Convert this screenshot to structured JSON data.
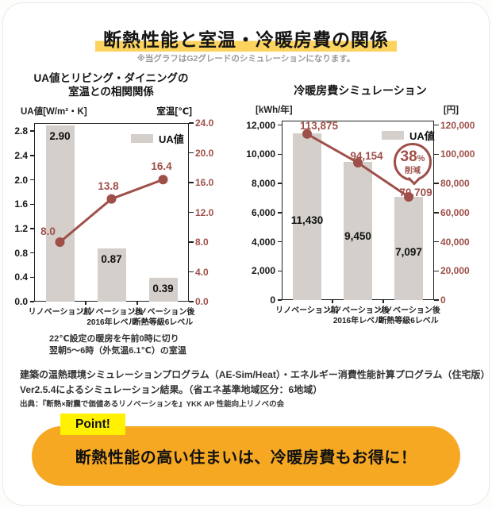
{
  "card": {
    "header": {
      "title": "断熱性能と室温・冷暖房費の関係",
      "subtitle": "※当グラフはG2グレードのシミュレーションになります。"
    },
    "notes_left_chart": [
      "22℃設定の暖房を午前0時に切り",
      "翌朝5～6時（外気温6.1℃）の室温"
    ],
    "footer_lines": [
      "建築の温熱環境シミュレーションプログラム（AE-Sim/Heat）・エネルギー消費性能計算プログラム（住宅版）",
      "Ver2.5.4によるシミュレーション結果。（省エネ基準地域区分：6地域）",
      "出典：『断熱×耐震で価値あるリノベーションを』YKK AP 性能向上リノベの会"
    ],
    "point": {
      "label": "Point!",
      "text": "断熱性能の高い住まいは、冷暖房費もお得に！"
    }
  },
  "chart_data": [
    {
      "type": "bar",
      "title_lines": [
        "UA値とリビング・ダイニングの",
        "室温との相関関係"
      ],
      "legend_label": "UA値",
      "categories": [
        [
          "リノベーション前"
        ],
        [
          "リノベーション後",
          "2016年レベル"
        ],
        [
          "リノベーション後",
          "断熱等級6レベル"
        ]
      ],
      "left_axis": {
        "unit_label": "UA値[W/m²・K]",
        "tick_values": [
          0,
          0.4,
          0.8,
          1.2,
          1.6,
          2.0,
          2.4,
          2.8
        ],
        "tick_labels": [
          "0.0",
          "0.4",
          "0.8",
          "1.2",
          "1.6",
          "2.0",
          "2.4",
          "2.8"
        ],
        "max": 2.933
      },
      "right_axis": {
        "unit_label": "室温[℃]",
        "tick_values": [
          0,
          4,
          8,
          12,
          16,
          20,
          24
        ],
        "tick_labels": [
          "0.0",
          "4.0",
          "8.0",
          "12.0",
          "16.0",
          "20.0",
          "24.0"
        ],
        "max": 24
      },
      "bar_series": {
        "axis": "left",
        "values": [
          2.9,
          0.87,
          0.39
        ],
        "labels": [
          "2.90",
          "0.87",
          "0.39"
        ]
      },
      "line_series": {
        "axis": "right",
        "values": [
          8.0,
          13.8,
          16.4
        ],
        "labels": [
          "8.0",
          "13.8",
          "16.4"
        ]
      }
    },
    {
      "type": "bar",
      "title_lines": [
        "冷暖房費シミュレーション"
      ],
      "legend_label": "UA値",
      "categories": [
        [
          "リノベーション前"
        ],
        [
          "リノベーション後",
          "2016年レベル"
        ],
        [
          "リノベーション後",
          "断熱等級6レベル"
        ]
      ],
      "left_axis": {
        "unit_label": "[kWh/年]",
        "tick_values": [
          0,
          2000,
          4000,
          6000,
          8000,
          10000,
          12000
        ],
        "tick_labels": [
          "0",
          "2,000",
          "4,000",
          "6,000",
          "8,000",
          "10,000",
          "12,000"
        ],
        "max": 12300
      },
      "right_axis": {
        "unit_label": "[円]",
        "tick_values": [
          0,
          20000,
          40000,
          60000,
          80000,
          100000,
          120000
        ],
        "tick_labels": [
          "0",
          "20,000",
          "40,000",
          "60,000",
          "80,000",
          "100,000",
          "120,000"
        ],
        "max": 123000
      },
      "bar_series": {
        "axis": "left",
        "values": [
          11430,
          9450,
          7097
        ],
        "labels": [
          "11,430",
          "9,450",
          "7,097"
        ]
      },
      "line_series": {
        "axis": "right",
        "values": [
          113875,
          94154,
          70709
        ],
        "labels": [
          "113,875",
          "94,154",
          "70,709"
        ]
      },
      "badge": {
        "value": "38",
        "suffix": "%",
        "word": "削減"
      }
    }
  ],
  "colors": {
    "accent_maroon": "#9F4F49",
    "bar_fill": "#D4CFCA",
    "title_highlight": "#FBD35E",
    "point_label_yellow": "#FFF100",
    "banner_orange": "#F7A823"
  }
}
